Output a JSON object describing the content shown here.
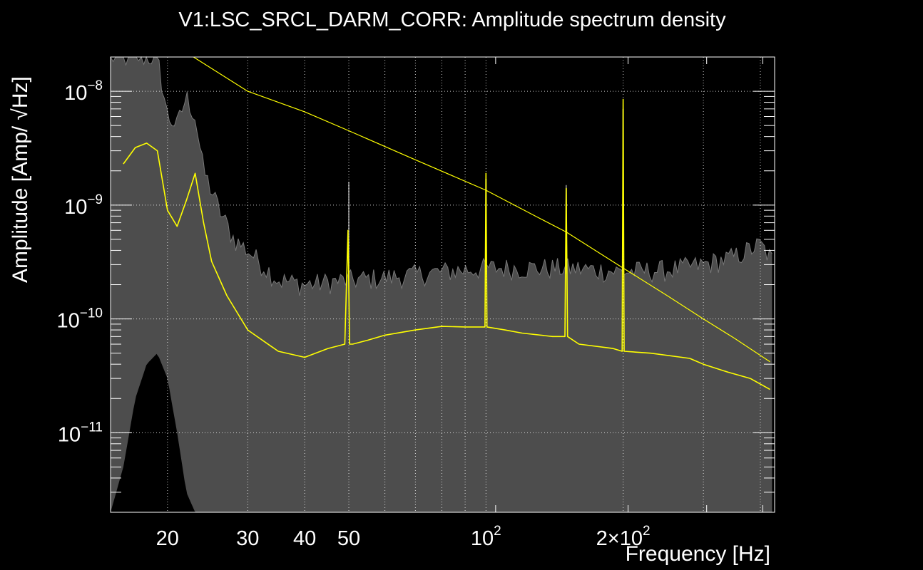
{
  "chart_data": {
    "type": "line",
    "title": "V1:LSC_SRCL_DARM_CORR: Amplitude spectrum density",
    "xlabel": "Frequency [Hz]",
    "ylabel": "Amplitude [Amp/ √Hz]",
    "x_scale": "log",
    "y_scale": "log",
    "xlim": [
      15,
      430
    ],
    "ylim": [
      2e-12,
      2e-08
    ],
    "grid": true,
    "x_ticks": [
      {
        "value": 20,
        "label": "20"
      },
      {
        "value": 30,
        "label": "30"
      },
      {
        "value": 40,
        "label": "40"
      },
      {
        "value": 50,
        "label": "50"
      },
      {
        "value": 100,
        "label": "10",
        "exp": "2"
      },
      {
        "value": 200,
        "label": "2×10",
        "exp": "2"
      }
    ],
    "y_ticks": [
      {
        "value": 1e-11,
        "label": "10",
        "exp": "−11"
      },
      {
        "value": 1e-10,
        "label": "10",
        "exp": "−10"
      },
      {
        "value": 1e-09,
        "label": "10",
        "exp": "−9"
      },
      {
        "value": 1e-08,
        "label": "10",
        "exp": "−8"
      }
    ],
    "colors": {
      "background": "#000000",
      "band": "#4d4d4d",
      "envelope": "#777777",
      "median": "#ffff00",
      "reference": "#ffff00",
      "text": "#ffffff"
    },
    "series": [
      {
        "role": "reference",
        "x": [
          22.8,
          30,
          40,
          50,
          70,
          100,
          130,
          150,
          200,
          250,
          300,
          350,
          420
        ],
        "y": [
          2e-08,
          1e-08,
          6.6e-09,
          4.5e-09,
          2.5e-09,
          1.35e-09,
          7.8e-10,
          5.8e-10,
          2.8e-10,
          1.6e-10,
          1e-10,
          6.8e-11,
          4.2e-11
        ]
      },
      {
        "role": "median",
        "x": [
          16,
          17,
          18,
          19,
          20,
          21,
          22,
          23,
          24,
          25,
          27,
          30,
          35,
          40,
          45,
          49,
          49.8,
          50.2,
          51,
          55,
          60,
          70,
          80,
          90,
          99.5,
          100,
          100.5,
          110,
          120,
          140,
          149,
          150,
          151,
          160,
          190,
          199,
          200,
          201,
          230,
          280,
          300,
          340,
          380,
          420
        ],
        "y": [
          2.3e-09,
          3.2e-09,
          3.5e-09,
          3e-09,
          9e-10,
          6.5e-10,
          1.1e-09,
          1.9e-09,
          7e-10,
          3.2e-10,
          1.6e-10,
          8e-11,
          5.2e-11,
          4.6e-11,
          5.5e-11,
          6e-11,
          6e-10,
          6e-11,
          6e-11,
          6.5e-11,
          7.2e-11,
          8e-11,
          8.6e-11,
          8.5e-11,
          8.5e-11,
          1.9e-09,
          8.5e-11,
          8e-11,
          7.5e-11,
          7e-11,
          7e-11,
          1.4e-09,
          7e-11,
          6e-11,
          5.5e-11,
          5.2e-11,
          8.5e-09,
          5.2e-11,
          5e-11,
          4.5e-11,
          4e-11,
          3.4e-11,
          3e-11,
          2.4e-11
        ]
      }
    ],
    "band": {
      "x": [
        15,
        16,
        17,
        18,
        19,
        20,
        21,
        22,
        23,
        24,
        26,
        28,
        30,
        35,
        40,
        50,
        60,
        80,
        100,
        150,
        200,
        250,
        300,
        350,
        400,
        420,
        430
      ],
      "upper": [
        2e-08,
        2e-08,
        2e-08,
        2e-08,
        2e-08,
        6e-09,
        5e-09,
        9e-09,
        6e-09,
        2e-09,
        9e-10,
        5e-10,
        4e-10,
        2.2e-10,
        2e-10,
        2.2e-10,
        2.3e-10,
        2.6e-10,
        2.8e-10,
        2.8e-10,
        2.6e-10,
        2.7e-10,
        3e-10,
        3.5e-10,
        4.5e-10,
        3.5e-10,
        3e-10
      ],
      "lower": [
        2e-12,
        5e-12,
        2e-11,
        4e-11,
        5e-11,
        3e-11,
        1e-11,
        3e-12,
        2e-12,
        2e-12,
        2e-12,
        2e-12,
        2e-12,
        2e-12,
        2e-12,
        2e-12,
        2e-12,
        2e-12,
        2e-12,
        2e-12,
        2e-12,
        2e-12,
        2e-12,
        2e-12,
        2e-12,
        2e-12,
        2e-12
      ]
    },
    "band_spikes": [
      {
        "x": 50,
        "y": 1.6e-09
      },
      {
        "x": 100,
        "y": 1.7e-09
      },
      {
        "x": 150,
        "y": 1.5e-09
      },
      {
        "x": 200,
        "y": 7e-09
      }
    ]
  }
}
